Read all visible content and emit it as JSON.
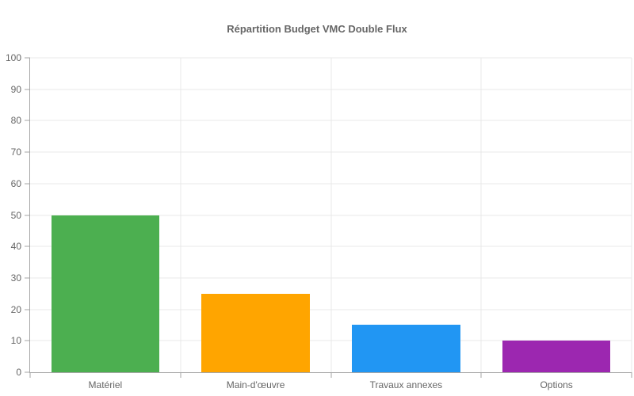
{
  "chart_data": {
    "type": "bar",
    "title": "Répartition Budget VMC Double Flux",
    "categories": [
      "Matériel",
      "Main-d'œuvre",
      "Travaux annexes",
      "Options"
    ],
    "values": [
      50,
      25,
      15,
      10
    ],
    "colors": [
      "#4caf50",
      "#ffa500",
      "#2196f3",
      "#9c27b0"
    ],
    "xlabel": "",
    "ylabel": "",
    "ylim": [
      0,
      100
    ],
    "ytick_step": 10,
    "ytick_labels": [
      "0",
      "10",
      "20",
      "30",
      "40",
      "50",
      "60",
      "70",
      "80",
      "90",
      "100"
    ],
    "grid": true,
    "legend": false,
    "bar_width_fraction": 0.72,
    "title_color": "#666666",
    "label_color": "#666666",
    "axis_color": "#a6a6a6",
    "grid_color": "#e8e8e8",
    "background_color": "#ffffff"
  }
}
